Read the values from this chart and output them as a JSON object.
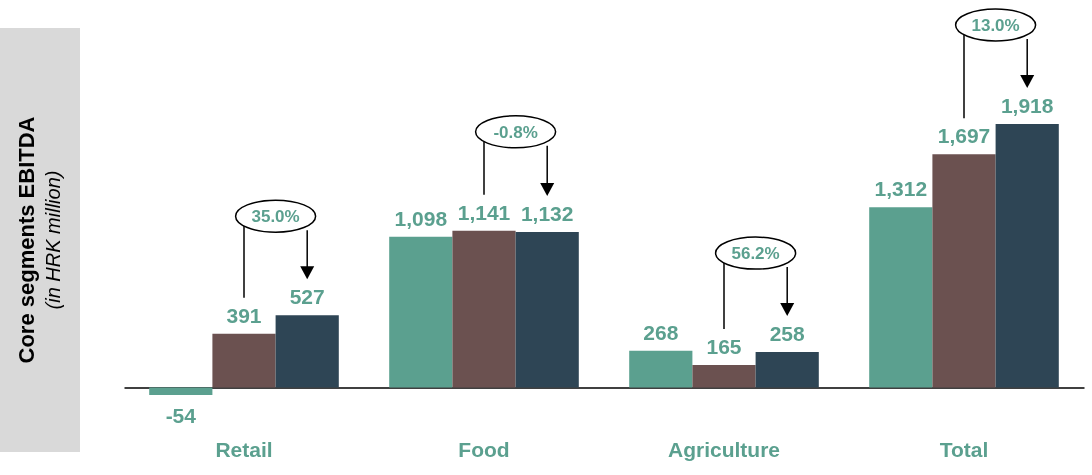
{
  "chart_data": {
    "type": "bar",
    "ylabel": "Core segments EBITDA\n(in HRK million)",
    "categories": [
      "Retail",
      "Food",
      "Agriculture",
      "Total"
    ],
    "series": [
      {
        "color": "#5ba08f",
        "values": [
          -54,
          1098,
          268,
          1312
        ],
        "value_labels": [
          "-54",
          "1,098",
          "268",
          "1,312"
        ]
      },
      {
        "color": "#6b5150",
        "values": [
          391,
          1141,
          165,
          1697
        ],
        "value_labels": [
          "391",
          "1,141",
          "165",
          "1,697"
        ]
      },
      {
        "color": "#2e4555",
        "values": [
          527,
          1132,
          258,
          1918
        ],
        "value_labels": [
          "527",
          "1,132",
          "258",
          "1,918"
        ]
      }
    ],
    "annotations": [
      "35.0%",
      "-0.8%",
      "56.2%",
      "13.0%"
    ],
    "legend": false
  }
}
